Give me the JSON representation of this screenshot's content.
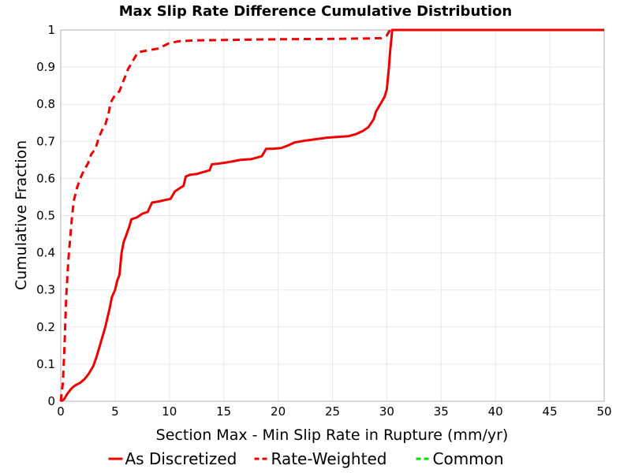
{
  "chart_data": {
    "type": "line",
    "title": "Max Slip Rate Difference Cumulative Distribution",
    "xlabel": "Section Max - Min Slip Rate in Rupture (mm/yr)",
    "ylabel": "Cumulative Fraction",
    "xlim": [
      0,
      50
    ],
    "ylim": [
      0,
      1
    ],
    "x_ticks": [
      "0",
      "5",
      "10",
      "15",
      "20",
      "25",
      "30",
      "35",
      "40",
      "45",
      "50"
    ],
    "y_ticks": [
      "0",
      "0.1",
      "0.2",
      "0.3",
      "0.4",
      "0.5",
      "0.6",
      "0.7",
      "0.8",
      "0.9",
      "1"
    ],
    "grid": true,
    "legend_position": "bottom",
    "series": [
      {
        "name": "As Discretized",
        "color": "#ee0000",
        "dash": "solid",
        "points": [
          [
            0,
            0
          ],
          [
            0.3,
            0.005
          ],
          [
            0.6,
            0.02
          ],
          [
            1.0,
            0.035
          ],
          [
            1.3,
            0.042
          ],
          [
            1.8,
            0.05
          ],
          [
            2.2,
            0.06
          ],
          [
            2.6,
            0.075
          ],
          [
            3.0,
            0.095
          ],
          [
            3.3,
            0.12
          ],
          [
            3.6,
            0.15
          ],
          [
            3.9,
            0.18
          ],
          [
            4.1,
            0.2
          ],
          [
            4.3,
            0.225
          ],
          [
            4.5,
            0.25
          ],
          [
            4.7,
            0.28
          ],
          [
            5.0,
            0.3
          ],
          [
            5.2,
            0.325
          ],
          [
            5.4,
            0.34
          ],
          [
            5.5,
            0.37
          ],
          [
            5.6,
            0.4
          ],
          [
            5.8,
            0.43
          ],
          [
            6.0,
            0.445
          ],
          [
            6.3,
            0.47
          ],
          [
            6.5,
            0.49
          ],
          [
            7.0,
            0.495
          ],
          [
            7.5,
            0.505
          ],
          [
            8.0,
            0.51
          ],
          [
            8.4,
            0.535
          ],
          [
            9.0,
            0.538
          ],
          [
            9.6,
            0.542
          ],
          [
            10.1,
            0.545
          ],
          [
            10.5,
            0.565
          ],
          [
            11.0,
            0.575
          ],
          [
            11.3,
            0.58
          ],
          [
            11.5,
            0.605
          ],
          [
            11.9,
            0.61
          ],
          [
            12.5,
            0.612
          ],
          [
            13.2,
            0.618
          ],
          [
            13.7,
            0.622
          ],
          [
            13.9,
            0.638
          ],
          [
            14.5,
            0.64
          ],
          [
            15.0,
            0.642
          ],
          [
            15.8,
            0.646
          ],
          [
            16.5,
            0.65
          ],
          [
            17.5,
            0.652
          ],
          [
            18.5,
            0.66
          ],
          [
            18.9,
            0.68
          ],
          [
            19.5,
            0.68
          ],
          [
            20.3,
            0.682
          ],
          [
            21.0,
            0.69
          ],
          [
            21.5,
            0.697
          ],
          [
            22.5,
            0.702
          ],
          [
            23.5,
            0.706
          ],
          [
            24.5,
            0.71
          ],
          [
            25.5,
            0.712
          ],
          [
            26.5,
            0.714
          ],
          [
            27.2,
            0.72
          ],
          [
            27.8,
            0.728
          ],
          [
            28.3,
            0.738
          ],
          [
            28.8,
            0.76
          ],
          [
            29.0,
            0.78
          ],
          [
            29.4,
            0.8
          ],
          [
            29.8,
            0.82
          ],
          [
            30.0,
            0.84
          ],
          [
            30.1,
            0.87
          ],
          [
            30.2,
            0.9
          ],
          [
            30.3,
            0.94
          ],
          [
            30.4,
            0.97
          ],
          [
            30.5,
            1.0
          ],
          [
            50,
            1.0
          ]
        ]
      },
      {
        "name": "Rate-Weighted",
        "color": "#ee0000",
        "dash": "dashed",
        "points": [
          [
            0,
            0
          ],
          [
            0.2,
            0.05
          ],
          [
            0.35,
            0.15
          ],
          [
            0.5,
            0.28
          ],
          [
            0.7,
            0.38
          ],
          [
            0.9,
            0.45
          ],
          [
            1.05,
            0.5
          ],
          [
            1.2,
            0.54
          ],
          [
            1.5,
            0.575
          ],
          [
            1.8,
            0.6
          ],
          [
            2.1,
            0.62
          ],
          [
            2.5,
            0.64
          ],
          [
            2.8,
            0.665
          ],
          [
            3.2,
            0.68
          ],
          [
            3.5,
            0.71
          ],
          [
            3.8,
            0.73
          ],
          [
            4.1,
            0.745
          ],
          [
            4.4,
            0.775
          ],
          [
            4.6,
            0.805
          ],
          [
            5.0,
            0.825
          ],
          [
            5.4,
            0.835
          ],
          [
            5.8,
            0.865
          ],
          [
            6.2,
            0.895
          ],
          [
            6.6,
            0.915
          ],
          [
            7.1,
            0.94
          ],
          [
            8.0,
            0.945
          ],
          [
            9.0,
            0.95
          ],
          [
            10.0,
            0.965
          ],
          [
            11.0,
            0.97
          ],
          [
            12.5,
            0.972
          ],
          [
            15.0,
            0.973
          ],
          [
            20.0,
            0.975
          ],
          [
            25.0,
            0.976
          ],
          [
            28.0,
            0.977
          ],
          [
            29.5,
            0.978
          ],
          [
            30.0,
            0.985
          ],
          [
            30.3,
            1.0
          ],
          [
            50,
            1.0
          ]
        ]
      },
      {
        "name": "Common",
        "color": "#00dd00",
        "dash": "dashed",
        "points": []
      }
    ]
  }
}
